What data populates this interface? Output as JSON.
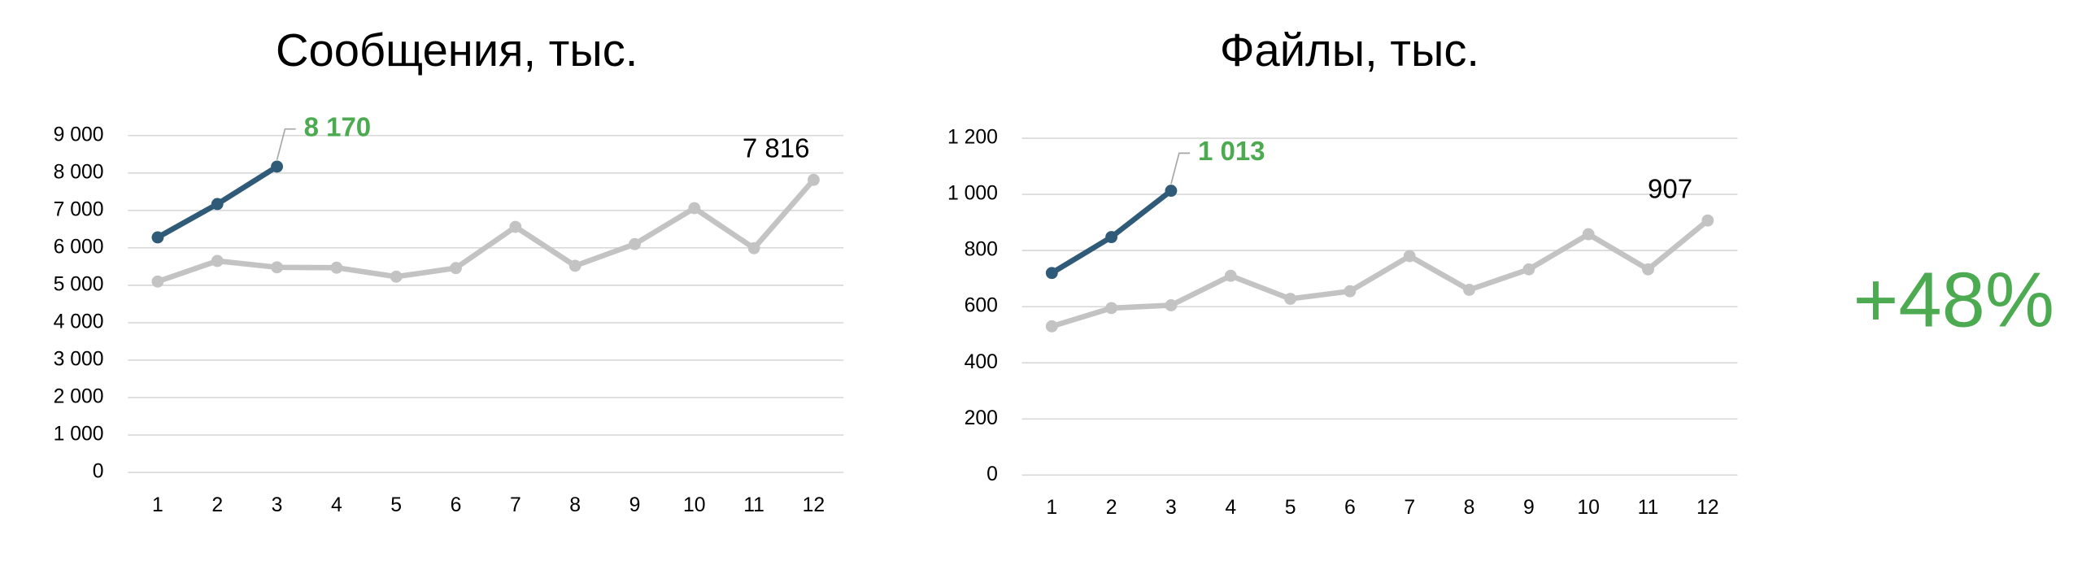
{
  "chart_data": [
    {
      "type": "line",
      "title": "Сообщения, тыс.",
      "categories": [
        "1",
        "2",
        "3",
        "4",
        "5",
        "6",
        "7",
        "8",
        "9",
        "10",
        "11",
        "12"
      ],
      "ylim": [
        0,
        9000
      ],
      "yticks": [
        0,
        {
          "value": 1000,
          "label": "1 000"
        },
        {
          "value": 2000,
          "label": "2 000"
        },
        {
          "value": 3000,
          "label": "3 000"
        },
        {
          "value": 4000,
          "label": "4 000"
        },
        {
          "value": 5000,
          "label": "5 000"
        },
        {
          "value": 6000,
          "label": "6 000"
        },
        {
          "value": 7000,
          "label": "7 000"
        },
        {
          "value": 8000,
          "label": "8 000"
        },
        {
          "value": 9000,
          "label": "9 000"
        }
      ],
      "grid": true,
      "series": [
        {
          "color": "#c3c3c3",
          "label_color": "#000000",
          "values": [
            5100,
            5650,
            5480,
            5470,
            5230,
            5460,
            6560,
            5520,
            6100,
            7060,
            5990,
            7816
          ],
          "value_labels": [
            null,
            null,
            null,
            null,
            null,
            null,
            null,
            null,
            null,
            null,
            null,
            "7 816"
          ]
        },
        {
          "color": "#2f5b78",
          "label_color": "#4caa50",
          "values": [
            6280,
            7170,
            8170,
            null,
            null,
            null,
            null,
            null,
            null,
            null,
            null,
            null
          ],
          "value_labels": [
            null,
            null,
            "8 170",
            null,
            null,
            null,
            null,
            null,
            null,
            null,
            null,
            null
          ]
        }
      ]
    },
    {
      "type": "line",
      "title": "Файлы, тыс.",
      "categories": [
        "1",
        "2",
        "3",
        "4",
        "5",
        "6",
        "7",
        "8",
        "9",
        "10",
        "11",
        "12"
      ],
      "ylim": [
        0,
        1200
      ],
      "yticks": [
        0,
        200,
        400,
        600,
        800,
        {
          "value": 1000,
          "label": "1 000"
        },
        {
          "value": 1200,
          "label": "1 200"
        }
      ],
      "grid": true,
      "series": [
        {
          "color": "#c3c3c3",
          "label_color": "#000000",
          "values": [
            530,
            595,
            605,
            710,
            628,
            655,
            780,
            660,
            733,
            858,
            733,
            907
          ],
          "value_labels": [
            null,
            null,
            null,
            null,
            null,
            null,
            null,
            null,
            null,
            null,
            null,
            "907"
          ]
        },
        {
          "color": "#2f5b78",
          "label_color": "#4caa50",
          "values": [
            720,
            848,
            1013,
            null,
            null,
            null,
            null,
            null,
            null,
            null,
            null,
            null
          ],
          "value_labels": [
            null,
            null,
            "1 013",
            null,
            null,
            null,
            null,
            null,
            null,
            null,
            null,
            null
          ]
        }
      ]
    }
  ],
  "summary": {
    "text": "+48%",
    "color": "#4caa50"
  }
}
